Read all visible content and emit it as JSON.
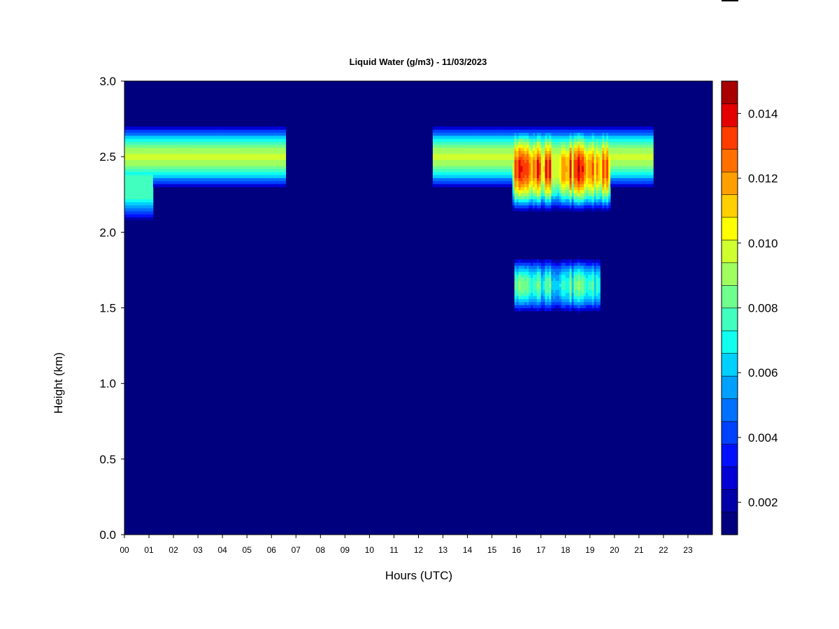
{
  "chart_data": {
    "type": "heatmap",
    "title": "Liquid Water (g/m3) - 11/03/2023",
    "xlabel": "Hours (UTC)",
    "ylabel": "Height (km)",
    "xlim": [
      0,
      24
    ],
    "ylim": [
      0,
      3
    ],
    "x_ticks": [
      "00",
      "01",
      "02",
      "03",
      "04",
      "05",
      "06",
      "07",
      "08",
      "09",
      "10",
      "11",
      "12",
      "13",
      "14",
      "15",
      "16",
      "17",
      "18",
      "19",
      "20",
      "21",
      "22",
      "23"
    ],
    "y_ticks": [
      "0.0",
      "0.5",
      "1.0",
      "1.5",
      "2.0",
      "2.5",
      "3.0"
    ],
    "colorbar": {
      "min": 0.001,
      "max": 0.015,
      "levels": 20,
      "ticks": [
        "0.002",
        "0.004",
        "0.006",
        "0.008",
        "0.010",
        "0.012",
        "0.014"
      ],
      "tick_values": [
        0.002,
        0.004,
        0.006,
        0.008,
        0.01,
        0.012,
        0.014
      ],
      "colors": [
        "#00007f",
        "#0000a8",
        "#0000d4",
        "#0010ff",
        "#0040ff",
        "#0070ff",
        "#00a0ff",
        "#00d0ff",
        "#10ffef",
        "#40ffbf",
        "#70ff8f",
        "#a0ff5f",
        "#d0ff2f",
        "#ffff00",
        "#ffd000",
        "#ffa000",
        "#ff7000",
        "#ff3c00",
        "#e40000",
        "#a80000"
      ],
      "background_color": "#00007f"
    },
    "cloud_layers": [
      {
        "name": "upper-morning",
        "x_range": [
          0,
          6.6
        ],
        "center_km": 2.5,
        "half_thickness_km": 0.22,
        "peak": 0.0095
      },
      {
        "name": "upper-morning-drop",
        "x_range": [
          0,
          1.2
        ],
        "center_km": 2.3,
        "half_thickness_km": 0.25,
        "peak": 0.008
      },
      {
        "name": "upper-afternoon",
        "x_range": [
          12.6,
          21.6
        ],
        "center_km": 2.5,
        "half_thickness_km": 0.22,
        "peak": 0.0095
      },
      {
        "name": "upper-core",
        "x_range": [
          15.8,
          19.8
        ],
        "center_km": 2.42,
        "half_thickness_km": 0.3,
        "peak": 0.0145
      },
      {
        "name": "lower-layer",
        "x_range": [
          15.9,
          19.4
        ],
        "center_km": 1.65,
        "half_thickness_km": 0.2,
        "peak": 0.009
      }
    ]
  }
}
